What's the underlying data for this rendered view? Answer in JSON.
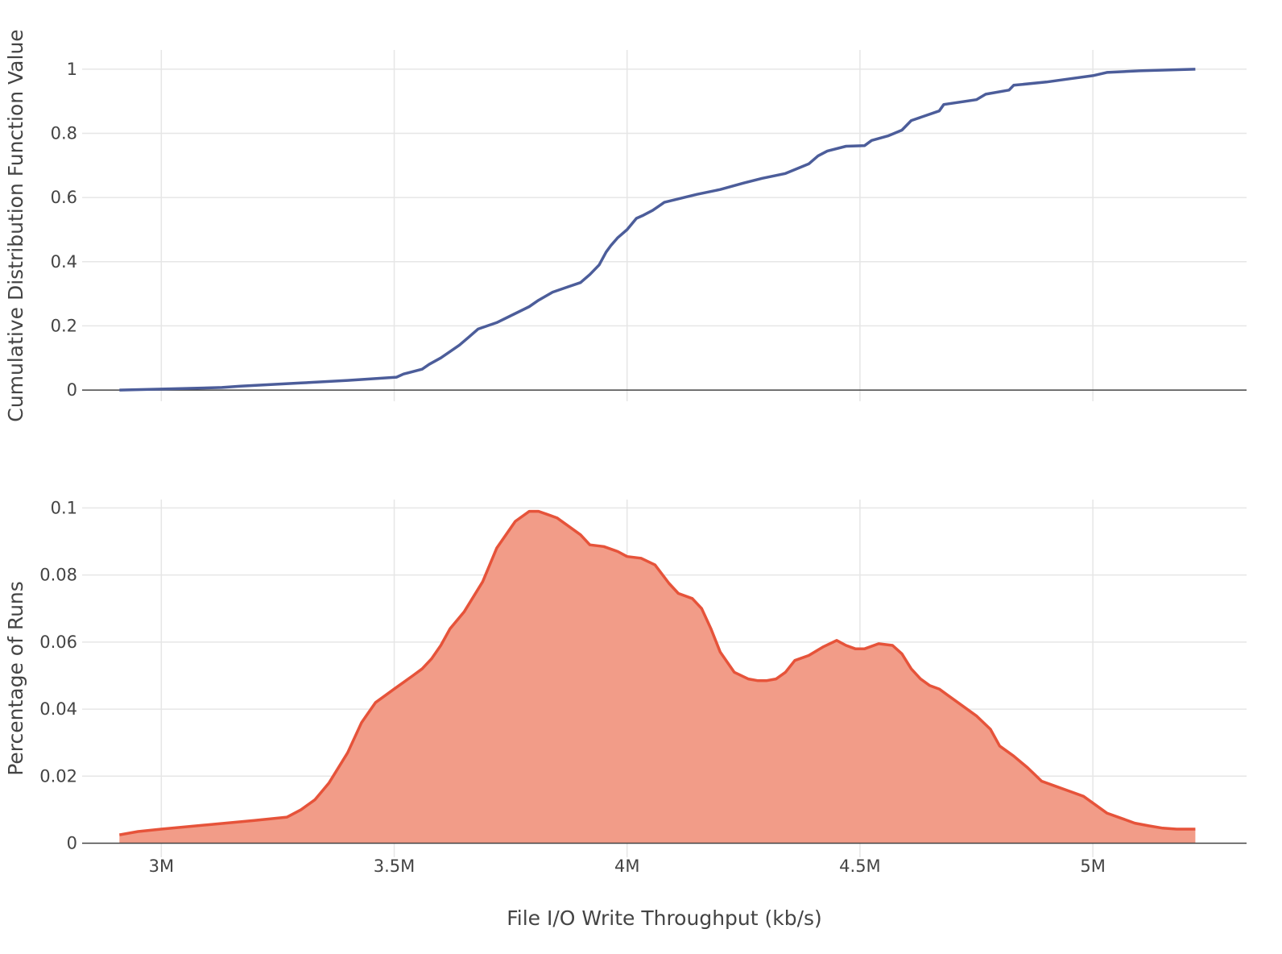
{
  "chart_data": [
    {
      "type": "line",
      "ylabel": "Cumulative Distribution Function Value",
      "xlim": [
        2830000,
        5330000
      ],
      "ylim": [
        -0.035,
        1.06
      ],
      "x_ticks": [
        3000000,
        3500000,
        4000000,
        4500000,
        5000000
      ],
      "y_ticks": [
        0,
        0.2,
        0.4,
        0.6,
        0.8,
        1
      ],
      "y_tick_labels": [
        "0",
        "0.2",
        "0.4",
        "0.6",
        "0.8",
        "1"
      ],
      "grid": true,
      "color": "#4c5d9a",
      "series": [
        {
          "x": [
            2910000,
            3000000,
            3130000,
            3170000,
            3300000,
            3400000,
            3505000,
            3520000,
            3560000,
            3575000,
            3600000,
            3620000,
            3640000,
            3660000,
            3680000,
            3720000,
            3755000,
            3790000,
            3810000,
            3840000,
            3870000,
            3900000,
            3920000,
            3940000,
            3955000,
            3965000,
            3980000,
            4000000,
            4020000,
            4035000,
            4055000,
            4080000,
            4150000,
            4200000,
            4250000,
            4290000,
            4340000,
            4390000,
            4410000,
            4430000,
            4470000,
            4510000,
            4525000,
            4560000,
            4590000,
            4610000,
            4670000,
            4680000,
            4750000,
            4770000,
            4820000,
            4830000,
            4900000,
            4950000,
            5000000,
            5030000,
            5100000,
            5220000
          ],
          "y": [
            0.0,
            0.003,
            0.008,
            0.012,
            0.022,
            0.03,
            0.04,
            0.05,
            0.065,
            0.08,
            0.1,
            0.12,
            0.14,
            0.165,
            0.19,
            0.21,
            0.235,
            0.26,
            0.28,
            0.305,
            0.32,
            0.335,
            0.36,
            0.39,
            0.43,
            0.45,
            0.475,
            0.5,
            0.535,
            0.545,
            0.56,
            0.585,
            0.61,
            0.625,
            0.645,
            0.66,
            0.675,
            0.705,
            0.73,
            0.745,
            0.76,
            0.762,
            0.778,
            0.792,
            0.81,
            0.84,
            0.87,
            0.89,
            0.905,
            0.922,
            0.935,
            0.95,
            0.96,
            0.97,
            0.98,
            0.99,
            0.995,
            1.0
          ]
        }
      ]
    },
    {
      "type": "area",
      "xlabel": "File I/O Write Throughput (kb/s)",
      "ylabel": "Percentage of Runs",
      "xlim": [
        2830000,
        5330000
      ],
      "ylim": [
        -0.0042,
        0.1025
      ],
      "x_ticks": [
        3000000,
        3500000,
        4000000,
        4500000,
        5000000
      ],
      "x_tick_labels": [
        "3M",
        "3.5M",
        "4M",
        "4.5M",
        "5M"
      ],
      "y_ticks": [
        0,
        0.02,
        0.04,
        0.06,
        0.08,
        0.1
      ],
      "y_tick_labels": [
        "0",
        "0.02",
        "0.04",
        "0.06",
        "0.08",
        "0.1"
      ],
      "grid": true,
      "line_color": "#e6533a",
      "fill_color": "#f29c88",
      "series": [
        {
          "x": [
            2910000,
            2950000,
            3000000,
            3100000,
            3200000,
            3270000,
            3300000,
            3330000,
            3360000,
            3400000,
            3430000,
            3460000,
            3480000,
            3500000,
            3520000,
            3540000,
            3560000,
            3580000,
            3600000,
            3620000,
            3650000,
            3690000,
            3720000,
            3760000,
            3790000,
            3810000,
            3830000,
            3850000,
            3870000,
            3900000,
            3920000,
            3950000,
            3980000,
            4000000,
            4030000,
            4060000,
            4090000,
            4110000,
            4140000,
            4160000,
            4180000,
            4200000,
            4230000,
            4260000,
            4280000,
            4300000,
            4320000,
            4340000,
            4360000,
            4390000,
            4420000,
            4450000,
            4470000,
            4490000,
            4510000,
            4540000,
            4570000,
            4590000,
            4610000,
            4630000,
            4650000,
            4670000,
            4690000,
            4720000,
            4750000,
            4780000,
            4800000,
            4830000,
            4860000,
            4890000,
            4920000,
            4950000,
            4980000,
            5000000,
            5030000,
            5060000,
            5090000,
            5120000,
            5150000,
            5180000,
            5220000
          ],
          "y": [
            0.0025,
            0.0035,
            0.0042,
            0.0055,
            0.0068,
            0.0078,
            0.01,
            0.013,
            0.018,
            0.027,
            0.036,
            0.042,
            0.044,
            0.046,
            0.048,
            0.05,
            0.052,
            0.055,
            0.059,
            0.064,
            0.069,
            0.078,
            0.088,
            0.096,
            0.099,
            0.099,
            0.098,
            0.097,
            0.095,
            0.092,
            0.089,
            0.0885,
            0.087,
            0.0855,
            0.085,
            0.083,
            0.0775,
            0.0745,
            0.073,
            0.07,
            0.064,
            0.057,
            0.051,
            0.049,
            0.0485,
            0.0485,
            0.049,
            0.051,
            0.0545,
            0.056,
            0.0585,
            0.0605,
            0.059,
            0.058,
            0.058,
            0.0595,
            0.059,
            0.0565,
            0.052,
            0.049,
            0.047,
            0.046,
            0.044,
            0.041,
            0.038,
            0.034,
            0.029,
            0.026,
            0.0225,
            0.0185,
            0.017,
            0.0155,
            0.014,
            0.012,
            0.009,
            0.0075,
            0.006,
            0.0052,
            0.0045,
            0.0042,
            0.0042
          ]
        }
      ]
    }
  ]
}
